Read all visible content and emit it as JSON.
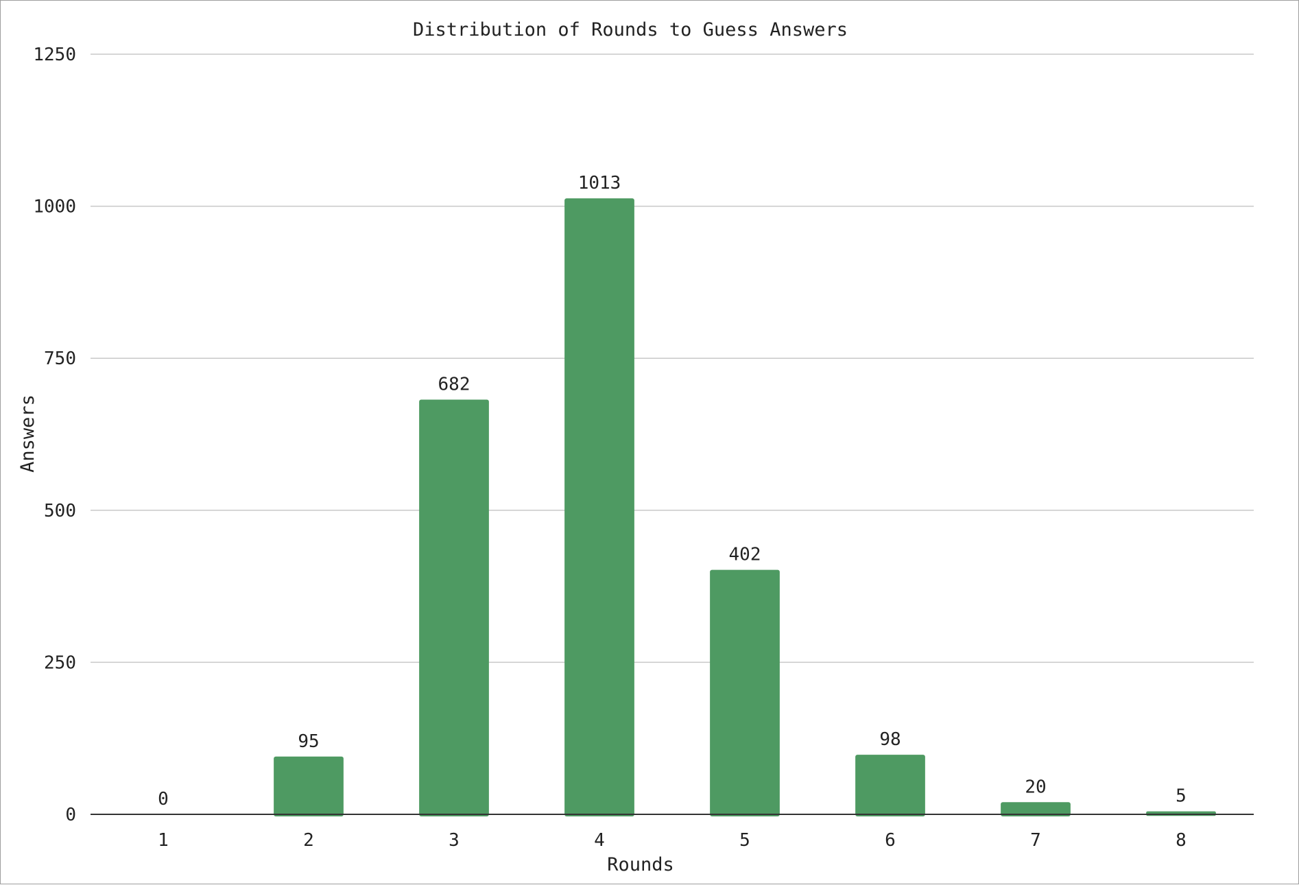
{
  "chart_data": {
    "type": "bar",
    "title": "Distribution of Rounds to Guess Answers",
    "xlabel": "Rounds",
    "ylabel": "Answers",
    "categories": [
      "1",
      "2",
      "3",
      "4",
      "5",
      "6",
      "7",
      "8"
    ],
    "values": [
      0,
      95,
      682,
      1013,
      402,
      98,
      20,
      5
    ],
    "data_labels": [
      "0",
      "95",
      "682",
      "1013",
      "402",
      "98",
      "20",
      "5"
    ],
    "ylim": [
      0,
      1250
    ],
    "yticks": [
      "0",
      "250",
      "500",
      "750",
      "1000",
      "1250"
    ],
    "grid": true,
    "legend": "none",
    "bar_color": "#4e9a62",
    "grid_color": "#c8c8c8",
    "axis_color": "#333333",
    "text_color": "#222222"
  }
}
